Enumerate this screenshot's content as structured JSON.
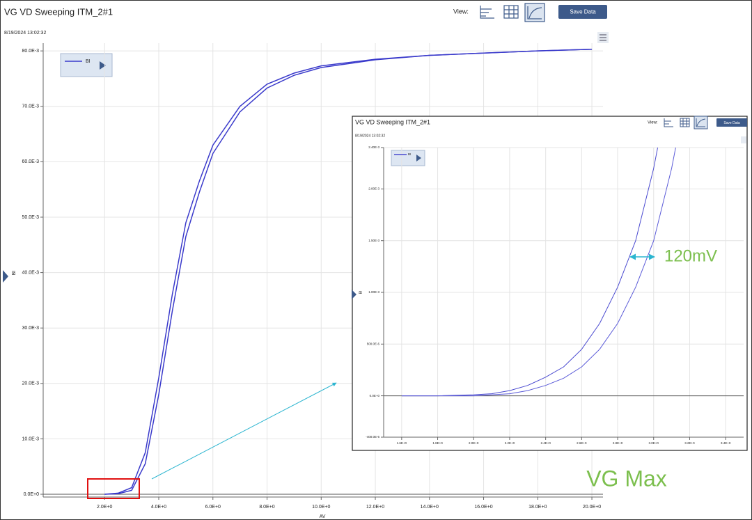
{
  "window": {
    "title": "VG VD Sweeping ITM_2#1",
    "timestamp": "8/19/2024 13:02:32",
    "view_label": "View:",
    "button": "Save Data"
  },
  "inset_window": {
    "title": "VG VD Sweeping ITM_2#1",
    "timestamp": "8/19/2024 13:02:32",
    "view_label": "View:",
    "button": "Save Data"
  },
  "annotations": {
    "shift": "120mV",
    "note": "VG Max"
  },
  "chart_data": [
    {
      "type": "line",
      "x_label": "AV",
      "y_label": "BI",
      "grid": true,
      "x": [
        2.0,
        2.5,
        3.0,
        3.5,
        4.0,
        4.5,
        5.0,
        5.5,
        6.0,
        7.0,
        8.0,
        9.0,
        10.0,
        12.0,
        14.0,
        16.0,
        18.0,
        20.0
      ],
      "series": [
        {
          "name": "BI",
          "color": "#3a3acb",
          "values": [
            0,
            0.0002,
            0.0012,
            0.0075,
            0.021,
            0.036,
            0.049,
            0.0565,
            0.063,
            0.07,
            0.074,
            0.076,
            0.0773,
            0.0785,
            0.0792,
            0.0796,
            0.08,
            0.0803
          ]
        },
        {
          "color": "#3a3acb",
          "values": [
            0,
            0.0001,
            0.0007,
            0.0055,
            0.018,
            0.033,
            0.0465,
            0.0545,
            0.0615,
            0.069,
            0.0733,
            0.0756,
            0.077,
            0.0784,
            0.0792,
            0.0796,
            0.08,
            0.0803
          ]
        }
      ],
      "xlim": [
        -0.27,
        20.41
      ],
      "ylim": [
        -0.0005,
        0.0814
      ],
      "xticks": [
        {
          "value": 2,
          "label": "2.0E+0"
        },
        {
          "value": 4,
          "label": "4.0E+0"
        },
        {
          "value": 6,
          "label": "6.0E+0"
        },
        {
          "value": 8,
          "label": "8.0E+0"
        },
        {
          "value": 10,
          "label": "10.0E+0"
        },
        {
          "value": 12,
          "label": "12.0E+0"
        },
        {
          "value": 14,
          "label": "14.0E+0"
        },
        {
          "value": 16,
          "label": "16.0E+0"
        },
        {
          "value": 18,
          "label": "18.0E+0"
        },
        {
          "value": 20,
          "label": "20.0E+0"
        }
      ],
      "yticks": [
        {
          "value": 0,
          "label": "0.0E+0"
        },
        {
          "value": 0.01,
          "label": "10.0E-3"
        },
        {
          "value": 0.02,
          "label": "20.0E-3"
        },
        {
          "value": 0.03,
          "label": "30.0E-3"
        },
        {
          "value": 0.04,
          "label": "40.0E-3"
        },
        {
          "value": 0.05,
          "label": "50.0E-3"
        },
        {
          "value": 0.06,
          "label": "60.0E-3"
        },
        {
          "value": 0.07,
          "label": "70.0E-3"
        },
        {
          "value": 0.08,
          "label": "80.0E-3"
        }
      ]
    },
    {
      "type": "line",
      "y_label": "BI",
      "grid": true,
      "x": [
        1.6,
        1.8,
        2.0,
        2.1,
        2.2,
        2.3,
        2.4,
        2.5,
        2.6,
        2.7,
        2.8,
        2.9,
        3.0,
        3.1,
        3.2
      ],
      "series": [
        {
          "name": "BI",
          "color": "#4a4ad0",
          "values": [
            0,
            0,
            1e-05,
            2e-05,
            5e-05,
            0.0001,
            0.00018,
            0.00028,
            0.00045,
            0.0007,
            0.00105,
            0.0015,
            0.0022,
            0.0031,
            null
          ]
        },
        {
          "color": "#5a5ad8",
          "values": [
            0,
            0,
            0,
            1e-05,
            2e-05,
            5e-05,
            0.0001,
            0.00017,
            0.00028,
            0.00045,
            0.0007,
            0.00105,
            0.0015,
            0.0022,
            0.0031
          ]
        }
      ],
      "xlim": [
        1.5,
        3.5
      ],
      "ylim": [
        -0.0004,
        0.0024
      ],
      "xticks": [
        {
          "value": 1.6,
          "label": "1.6E+0"
        },
        {
          "value": 1.8,
          "label": "1.8E+0"
        },
        {
          "value": 2.0,
          "label": "2.0E+0"
        },
        {
          "value": 2.2,
          "label": "2.2E+0"
        },
        {
          "value": 2.4,
          "label": "2.4E+0"
        },
        {
          "value": 2.6,
          "label": "2.6E+0"
        },
        {
          "value": 2.8,
          "label": "2.8E+0"
        },
        {
          "value": 3.0,
          "label": "3.0E+0"
        },
        {
          "value": 3.2,
          "label": "3.2E+0"
        },
        {
          "value": 3.4,
          "label": "3.4E+0"
        }
      ],
      "yticks": [
        {
          "value": -0.0004,
          "label": "-400.0E-6"
        },
        {
          "value": 0,
          "label": "0.0E+0"
        },
        {
          "value": 0.0005,
          "label": "500.0E-6"
        },
        {
          "value": 0.001,
          "label": "1.00E-3"
        },
        {
          "value": 0.0015,
          "label": "1.50E-3"
        },
        {
          "value": 0.002,
          "label": "2.00E-3"
        },
        {
          "value": 0.0024,
          "label": "2.40E-3"
        }
      ]
    }
  ]
}
